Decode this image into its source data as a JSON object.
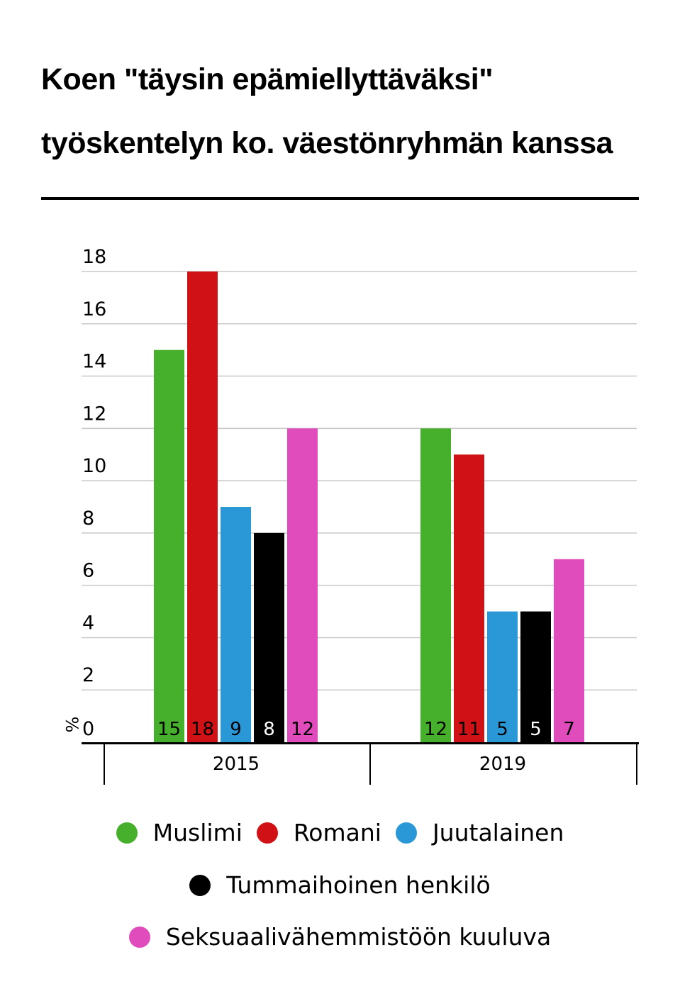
{
  "title_line1": "Koen \"täysin epämiellyttäväksi\"",
  "title_line2": "työskentelyn ko. väestönryhmän kanssa",
  "chart_data": {
    "type": "bar",
    "categories": [
      "2015",
      "2019"
    ],
    "ylabel": "%",
    "ylim": [
      0,
      18
    ],
    "yticks": [
      0,
      2,
      4,
      6,
      8,
      10,
      12,
      14,
      16,
      18
    ],
    "grid": true,
    "legend_position": "bottom",
    "series": [
      {
        "name": "Muslimi",
        "color": "#46b02c",
        "values": [
          15,
          12
        ]
      },
      {
        "name": "Romani",
        "color": "#d01217",
        "values": [
          18,
          11
        ]
      },
      {
        "name": "Juutalainen",
        "color": "#2a97d6",
        "values": [
          9,
          5
        ]
      },
      {
        "name": "Tummaihoinen henkilö",
        "color": "#000000",
        "values": [
          8,
          5
        ]
      },
      {
        "name": "Seksuaalivähemmistöön kuuluva",
        "color": "#e04cbc",
        "values": [
          12,
          7
        ]
      }
    ]
  }
}
